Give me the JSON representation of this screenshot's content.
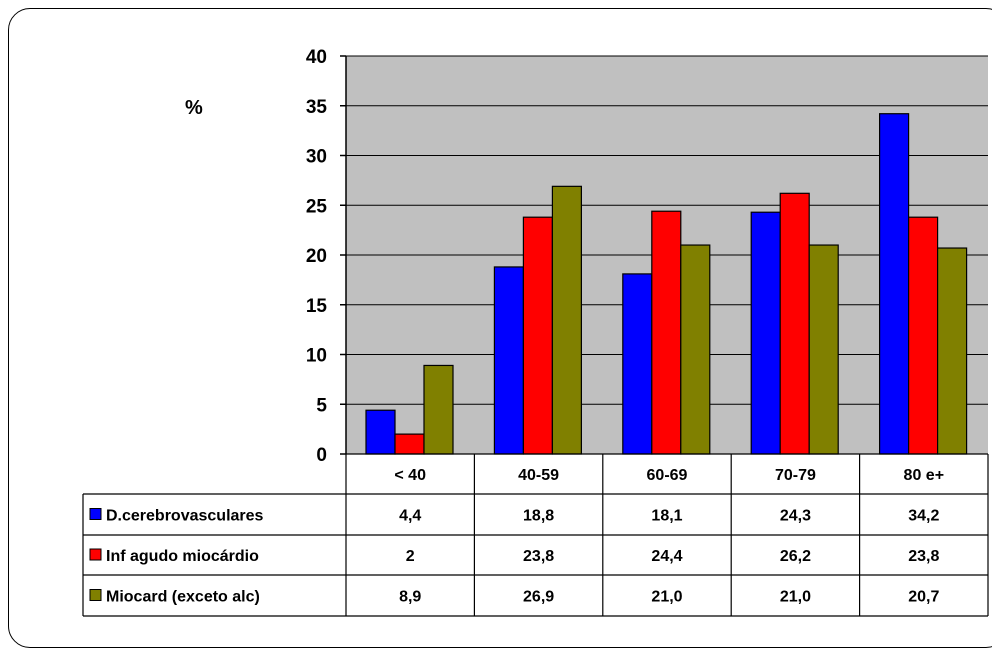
{
  "chart_data": {
    "type": "bar",
    "ylabel": "%",
    "ylim": [
      0,
      40
    ],
    "yticks": [
      0,
      5,
      10,
      15,
      20,
      25,
      30,
      35,
      40
    ],
    "grid": true,
    "legend": "table-left",
    "categories": [
      "< 40",
      "40-59",
      "60-69",
      "70-79",
      "80 e+"
    ],
    "series": [
      {
        "name": "D.cerebrovasculares",
        "color": "#0000ff",
        "values": [
          4.4,
          18.8,
          18.1,
          24.3,
          34.2
        ],
        "labels": [
          "4,4",
          "18,8",
          "18,1",
          "24,3",
          "34,2"
        ]
      },
      {
        "name": "Inf agudo miocárdio",
        "color": "#ff0000",
        "values": [
          2,
          23.8,
          24.4,
          26.2,
          23.8
        ],
        "labels": [
          "2",
          "23,8",
          "24,4",
          "26,2",
          "23,8"
        ]
      },
      {
        "name": "Miocard (exceto alc)",
        "color": "#808000",
        "values": [
          8.9,
          26.9,
          21.0,
          21.0,
          20.7
        ],
        "labels": [
          "8,9",
          "26,9",
          "21,0",
          "21,0",
          "20,7"
        ]
      }
    ]
  }
}
